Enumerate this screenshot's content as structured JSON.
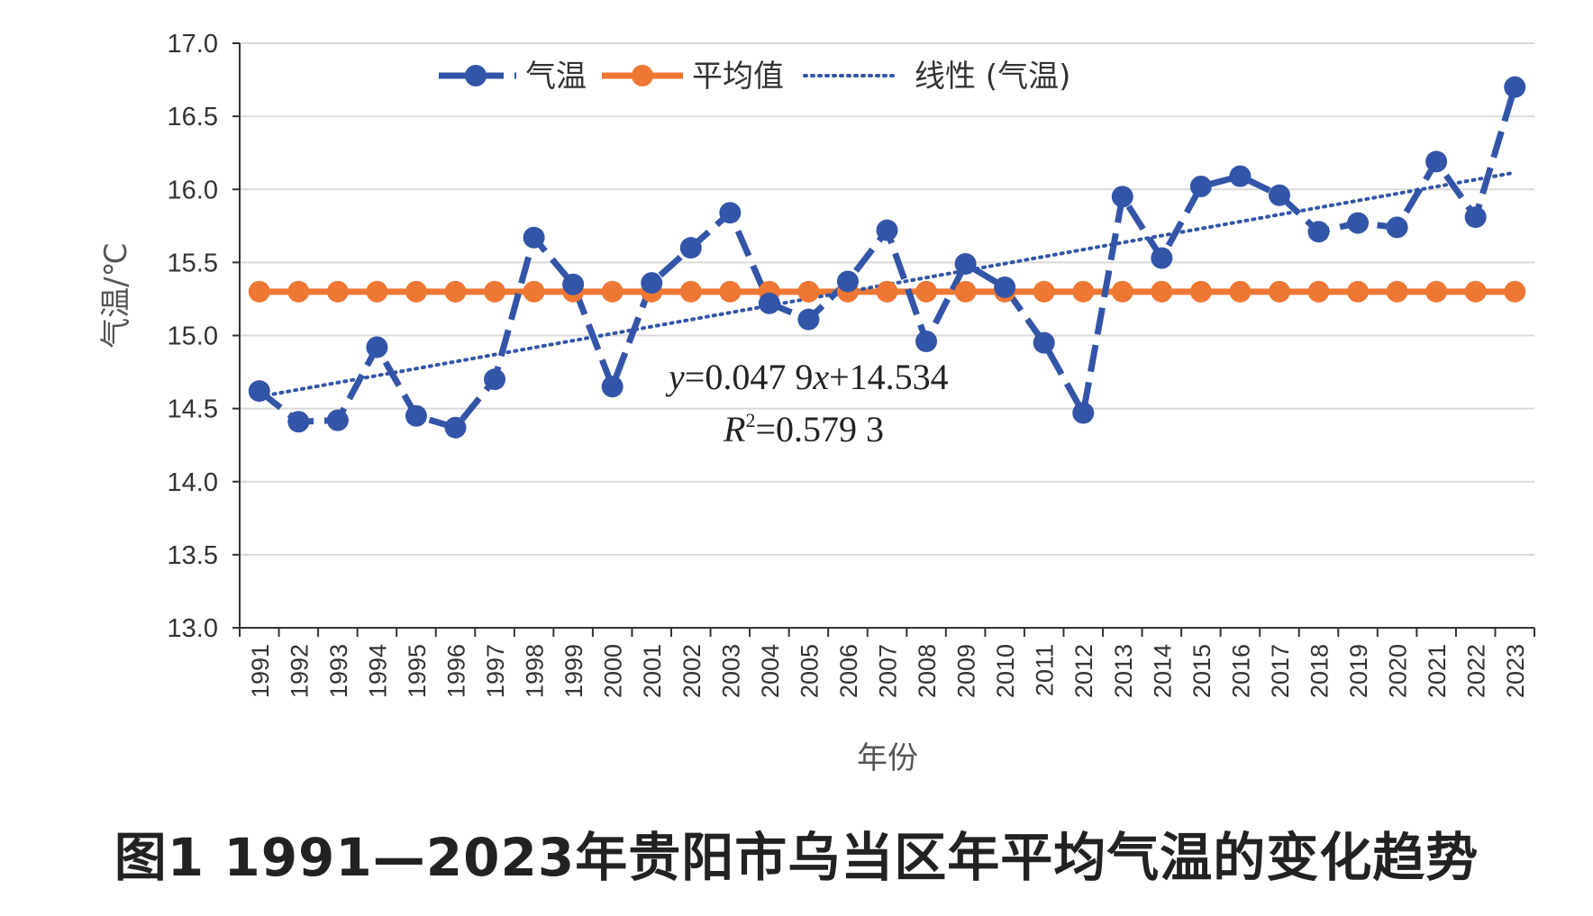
{
  "colors": {
    "temperature": "#3355a8",
    "average": "#ee7733",
    "trend": "#3355a8",
    "grid": "#d9d9d9",
    "axis": "#333333"
  },
  "caption": "图1  1991—2023年贵阳市乌当区年平均气温的变化趋势",
  "chart_data": {
    "type": "line",
    "xlabel": "年份",
    "ylabel": "气温/℃",
    "ylim": [
      13.0,
      17.0
    ],
    "yticks": [
      "13.0",
      "13.5",
      "14.0",
      "14.5",
      "15.0",
      "15.5",
      "16.0",
      "16.5",
      "17.0"
    ],
    "grid": true,
    "legend_position": "top",
    "x": [
      "1991",
      "1992",
      "1993",
      "1994",
      "1995",
      "1996",
      "1997",
      "1998",
      "1999",
      "2000",
      "2001",
      "2002",
      "2003",
      "2004",
      "2005",
      "2006",
      "2007",
      "2008",
      "2009",
      "2010",
      "2011",
      "2012",
      "2013",
      "2014",
      "2015",
      "2016",
      "2017",
      "2018",
      "2019",
      "2020",
      "2021",
      "2022",
      "2023"
    ],
    "series": [
      {
        "name": "气温",
        "style": "dashed-with-markers",
        "values": [
          14.62,
          14.41,
          14.42,
          14.92,
          14.45,
          14.37,
          14.7,
          15.67,
          15.35,
          14.65,
          15.36,
          15.6,
          15.84,
          15.22,
          15.11,
          15.37,
          15.72,
          14.96,
          15.49,
          15.33,
          14.95,
          14.47,
          15.95,
          15.53,
          16.02,
          16.09,
          15.96,
          15.71,
          15.77,
          15.74,
          16.19,
          15.81,
          16.7
        ]
      },
      {
        "name": "平均值",
        "style": "solid-with-markers",
        "values": [
          15.3,
          15.3,
          15.3,
          15.3,
          15.3,
          15.3,
          15.3,
          15.3,
          15.3,
          15.3,
          15.3,
          15.3,
          15.3,
          15.3,
          15.3,
          15.3,
          15.3,
          15.3,
          15.3,
          15.3,
          15.3,
          15.3,
          15.3,
          15.3,
          15.3,
          15.3,
          15.3,
          15.3,
          15.3,
          15.3,
          15.3,
          15.3,
          15.3
        ]
      },
      {
        "name": "线性 (气温)",
        "style": "dotted-trendline",
        "slope": 0.0479,
        "intercept": 14.534
      }
    ],
    "annotations": {
      "equation_y": "y",
      "equation_rest": "=0.047 9",
      "equation_x": "x",
      "equation_tail": "+14.534",
      "r2_R": "R",
      "r2_sup": "2",
      "r2_rest": "=0.579 3"
    }
  }
}
